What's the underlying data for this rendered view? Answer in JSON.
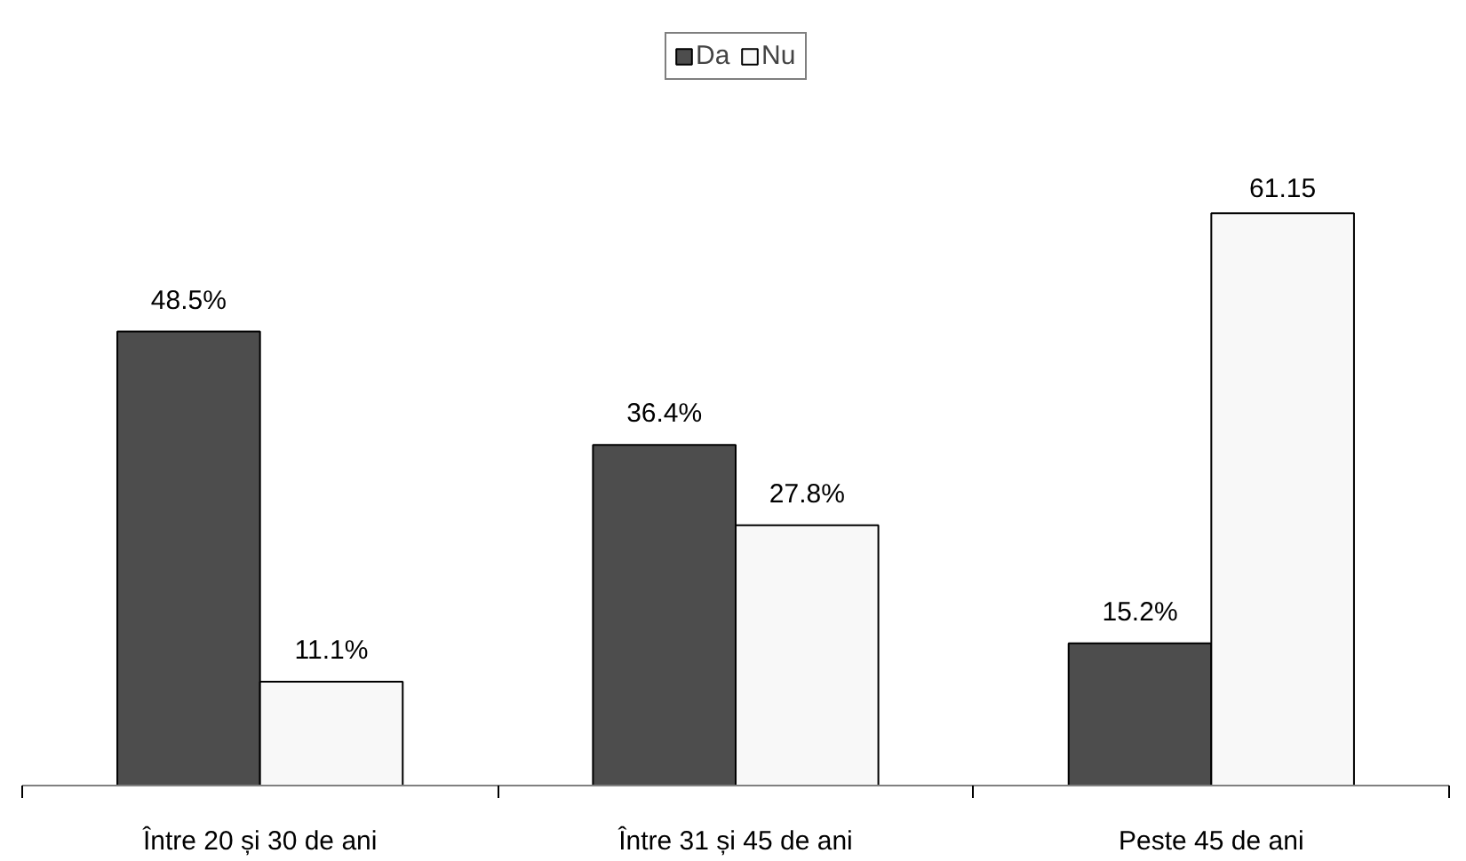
{
  "chart_data": {
    "type": "bar",
    "categories": [
      "Între 20 și 30 de ani",
      "Între 31 și 45 de ani",
      "Peste 45 de ani"
    ],
    "series": [
      {
        "name": "Da",
        "color": "#4d4d4d",
        "values": [
          48.5,
          36.4,
          15.2
        ],
        "value_labels": [
          "48.5%",
          "36.4%",
          "15.2%"
        ]
      },
      {
        "name": "Nu",
        "color": "#f8f8f8",
        "values": [
          11.1,
          27.8,
          61.15
        ],
        "value_labels": [
          "11.1%",
          "27.8%",
          "61.15"
        ]
      }
    ],
    "legend": "top",
    "grid": false
  }
}
